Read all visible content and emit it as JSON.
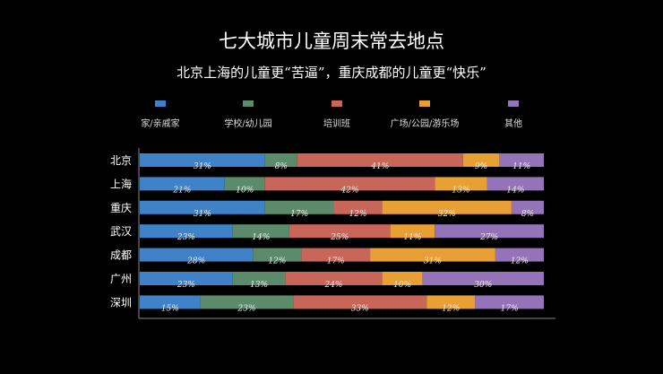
{
  "chart_data": {
    "type": "bar",
    "stacked": true,
    "orientation": "horizontal",
    "title": "七大城市儿童周末常去地点",
    "subtitle": "北京上海的儿童更“苦逼”，重庆成都的儿童更“快乐”",
    "categories": [
      "北京",
      "上海",
      "重庆",
      "武汉",
      "成都",
      "广州",
      "深圳"
    ],
    "series": [
      {
        "name": "家/亲戚家",
        "color": "#3f82c8",
        "values": [
          31,
          21,
          31,
          23,
          28,
          23,
          15
        ]
      },
      {
        "name": "学校/幼儿园",
        "color": "#5b8b6a",
        "values": [
          8,
          10,
          17,
          14,
          12,
          13,
          23
        ]
      },
      {
        "name": "培训班",
        "color": "#c8665a",
        "values": [
          41,
          42,
          12,
          25,
          17,
          24,
          33
        ]
      },
      {
        "name": "广场/公园/游乐场",
        "color": "#e8a035",
        "values": [
          9,
          13,
          32,
          11,
          31,
          10,
          12
        ]
      },
      {
        "name": "其他",
        "color": "#9473b8",
        "values": [
          11,
          14,
          8,
          27,
          12,
          30,
          17
        ]
      }
    ],
    "value_format": "percent",
    "legend_position": "top",
    "grid": false
  }
}
